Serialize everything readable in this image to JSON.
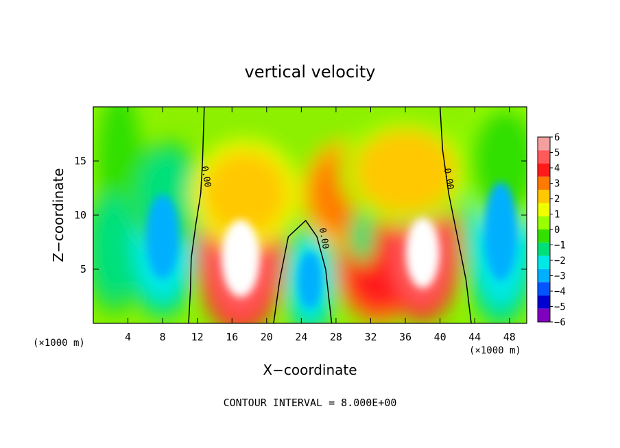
{
  "chart_data": {
    "type": "heatmap",
    "title": "vertical velocity",
    "xlabel": "X−coordinate",
    "ylabel": "Z−coordinate",
    "x_unit_label": "(×1000 m)",
    "footer": "CONTOUR INTERVAL = 8.000E+00",
    "xlim": [
      0,
      50
    ],
    "ylim": [
      0,
      20
    ],
    "x_ticks": [
      4,
      8,
      12,
      16,
      20,
      24,
      28,
      32,
      36,
      40,
      44,
      48
    ],
    "y_ticks": [
      5,
      10,
      15
    ],
    "colorbar": {
      "levels": [
        "6",
        "5",
        "4",
        "3",
        "2",
        "1",
        "0",
        "−1",
        "−2",
        "−3",
        "−4",
        "−5",
        "−6"
      ],
      "colors": [
        "#f4a0a0",
        "#ff5a5a",
        "#ff1a1a",
        "#ff7a00",
        "#ffc800",
        "#f0ff00",
        "#9aff00",
        "#33e000",
        "#00e07a",
        "#00e8e8",
        "#00b0ff",
        "#0055ff",
        "#0000d0",
        "#8000c0"
      ]
    },
    "contour_labels": [
      {
        "text": "0.00",
        "x": 12.7,
        "z": 13.5
      },
      {
        "text": "0.00",
        "x": 26.3,
        "z": 7.8
      },
      {
        "text": "0.00",
        "x": 40.7,
        "z": 13.3
      }
    ],
    "cells": [
      {
        "x": 3.0,
        "z": 15.0,
        "v": -2.2,
        "rx": 3.0,
        "rz": 7.0
      },
      {
        "x": 2.5,
        "z": 7.0,
        "v": -3.5,
        "rx": 3.0,
        "rz": 5.0
      },
      {
        "x": 8.0,
        "z": 8.0,
        "v": -4.6,
        "rx": 3.5,
        "rz": 6.0
      },
      {
        "x": 8.5,
        "z": 12.0,
        "v": -3.0,
        "rx": 3.5,
        "rz": 4.0
      },
      {
        "x": 17.0,
        "z": 6.0,
        "v": 5.8,
        "rx": 4.0,
        "rz": 5.5
      },
      {
        "x": 17.5,
        "z": 12.0,
        "v": 2.5,
        "rx": 5.0,
        "rz": 4.0
      },
      {
        "x": 25.0,
        "z": 4.0,
        "v": -4.6,
        "rx": 2.5,
        "rz": 4.0
      },
      {
        "x": 29.0,
        "z": 12.0,
        "v": 3.2,
        "rx": 4.0,
        "rz": 4.0
      },
      {
        "x": 33.0,
        "z": 5.0,
        "v": 4.4,
        "rx": 4.0,
        "rz": 4.0
      },
      {
        "x": 38.0,
        "z": 6.5,
        "v": 5.8,
        "rx": 3.5,
        "rz": 5.0
      },
      {
        "x": 31.0,
        "z": 8.0,
        "v": -3.0,
        "rx": 1.2,
        "rz": 2.0
      },
      {
        "x": 36.0,
        "z": 14.0,
        "v": 1.8,
        "rx": 6.0,
        "rz": 4.0
      },
      {
        "x": 47.0,
        "z": 8.5,
        "v": -4.8,
        "rx": 3.5,
        "rz": 7.0
      },
      {
        "x": 47.5,
        "z": 15.0,
        "v": -2.2,
        "rx": 4.0,
        "rz": 5.0
      }
    ]
  }
}
